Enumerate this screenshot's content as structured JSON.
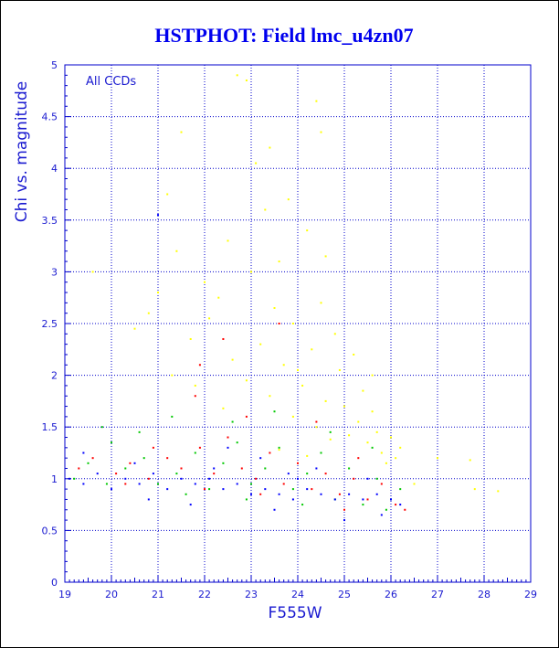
{
  "chart_data": {
    "type": "scatter",
    "title": "HSTPHOT: Field lmc_u4zn07",
    "xlabel": "F555W",
    "ylabel": "Chi vs. magnitude",
    "annotation": "All CCDs",
    "xlim": [
      19,
      29
    ],
    "ylim": [
      0,
      5
    ],
    "x_ticks": [
      "19",
      "20",
      "21",
      "22",
      "23",
      "24",
      "25",
      "26",
      "27",
      "28",
      "29"
    ],
    "y_ticks": [
      "0",
      "0.5",
      "1",
      "1.5",
      "2",
      "2.5",
      "3",
      "3.5",
      "4",
      "4.5",
      "5"
    ],
    "grid": true,
    "series": [
      {
        "color": "#ffff00",
        "points": [
          [
            22.7,
            4.9
          ],
          [
            22.9,
            4.85
          ],
          [
            24.4,
            4.65
          ],
          [
            24.5,
            4.35
          ],
          [
            21.5,
            4.35
          ],
          [
            23.4,
            4.2
          ],
          [
            23.1,
            4.05
          ],
          [
            21.2,
            3.75
          ],
          [
            23.8,
            3.7
          ],
          [
            23.3,
            3.6
          ],
          [
            24.2,
            3.4
          ],
          [
            21.4,
            3.2
          ],
          [
            22.5,
            3.3
          ],
          [
            24.6,
            3.15
          ],
          [
            23.0,
            3.0
          ],
          [
            19.6,
            3.0
          ],
          [
            21.0,
            2.8
          ],
          [
            22.3,
            2.75
          ],
          [
            24.5,
            2.7
          ],
          [
            23.5,
            2.65
          ],
          [
            22.1,
            2.55
          ],
          [
            23.9,
            2.5
          ],
          [
            20.5,
            2.45
          ],
          [
            24.8,
            2.4
          ],
          [
            21.7,
            2.35
          ],
          [
            23.2,
            2.3
          ],
          [
            24.3,
            2.25
          ],
          [
            25.2,
            2.2
          ],
          [
            22.6,
            2.15
          ],
          [
            23.7,
            2.1
          ],
          [
            24.9,
            2.05
          ],
          [
            21.3,
            2.0
          ],
          [
            22.9,
            1.95
          ],
          [
            24.1,
            1.9
          ],
          [
            25.4,
            1.85
          ],
          [
            23.4,
            1.8
          ],
          [
            24.6,
            1.75
          ],
          [
            25.0,
            1.7
          ],
          [
            22.4,
            1.68
          ],
          [
            25.6,
            1.65
          ],
          [
            23.9,
            1.6
          ],
          [
            25.3,
            1.55
          ],
          [
            24.4,
            1.5
          ],
          [
            25.7,
            1.45
          ],
          [
            25.1,
            1.42
          ],
          [
            26.0,
            1.4
          ],
          [
            24.7,
            1.38
          ],
          [
            25.5,
            1.35
          ],
          [
            26.2,
            1.3
          ],
          [
            23.6,
            1.28
          ],
          [
            25.8,
            1.25
          ],
          [
            24.2,
            1.22
          ],
          [
            26.1,
            1.2
          ],
          [
            25.9,
            1.15
          ],
          [
            27.7,
            1.18
          ],
          [
            27.8,
            0.9
          ],
          [
            28.3,
            0.88
          ],
          [
            27.0,
            1.2
          ],
          [
            26.5,
            0.95
          ],
          [
            20.8,
            2.6
          ],
          [
            22.0,
            2.9
          ],
          [
            23.6,
            3.1
          ],
          [
            24.0,
            2.05
          ],
          [
            21.8,
            1.9
          ],
          [
            25.6,
            2.0
          ]
        ]
      },
      {
        "color": "#ff0000",
        "points": [
          [
            19.3,
            1.1
          ],
          [
            19.6,
            1.2
          ],
          [
            20.1,
            1.05
          ],
          [
            20.4,
            1.15
          ],
          [
            20.8,
            1.0
          ],
          [
            21.2,
            1.2
          ],
          [
            21.5,
            1.1
          ],
          [
            21.9,
            1.3
          ],
          [
            22.2,
            1.05
          ],
          [
            22.5,
            1.4
          ],
          [
            22.8,
            1.1
          ],
          [
            23.1,
            1.0
          ],
          [
            23.4,
            1.25
          ],
          [
            23.7,
            0.95
          ],
          [
            24.0,
            1.15
          ],
          [
            24.3,
            0.9
          ],
          [
            24.6,
            1.05
          ],
          [
            24.9,
            0.85
          ],
          [
            25.2,
            1.0
          ],
          [
            25.5,
            0.8
          ],
          [
            25.8,
            0.95
          ],
          [
            26.1,
            0.75
          ],
          [
            26.3,
            0.7
          ],
          [
            21.8,
            1.8
          ],
          [
            22.4,
            2.35
          ],
          [
            23.6,
            2.5
          ],
          [
            21.9,
            2.1
          ],
          [
            22.9,
            1.6
          ],
          [
            24.4,
            1.55
          ],
          [
            25.3,
            1.2
          ],
          [
            20.9,
            1.3
          ],
          [
            23.2,
            0.85
          ],
          [
            25.0,
            0.7
          ],
          [
            22.0,
            0.9
          ],
          [
            20.3,
            0.95
          ]
        ]
      },
      {
        "color": "#00c800",
        "points": [
          [
            19.2,
            1.0
          ],
          [
            19.5,
            1.15
          ],
          [
            19.9,
            0.95
          ],
          [
            20.3,
            1.1
          ],
          [
            20.7,
            1.2
          ],
          [
            21.0,
            0.95
          ],
          [
            21.4,
            1.05
          ],
          [
            21.8,
            1.25
          ],
          [
            22.1,
            0.9
          ],
          [
            22.4,
            1.15
          ],
          [
            22.7,
            1.35
          ],
          [
            23.0,
            0.95
          ],
          [
            23.3,
            1.1
          ],
          [
            23.6,
            1.3
          ],
          [
            23.9,
            0.9
          ],
          [
            24.2,
            1.05
          ],
          [
            24.5,
            1.25
          ],
          [
            24.8,
            0.8
          ],
          [
            25.1,
            1.1
          ],
          [
            25.4,
            0.75
          ],
          [
            25.7,
            1.0
          ],
          [
            26.0,
            0.8
          ],
          [
            26.2,
            0.9
          ],
          [
            19.8,
            1.5
          ],
          [
            20.6,
            1.45
          ],
          [
            21.3,
            1.6
          ],
          [
            22.6,
            1.55
          ],
          [
            23.5,
            1.65
          ],
          [
            24.7,
            1.45
          ],
          [
            25.6,
            1.3
          ],
          [
            20.0,
            1.35
          ],
          [
            21.6,
            0.85
          ],
          [
            22.9,
            0.8
          ],
          [
            24.1,
            0.75
          ],
          [
            25.9,
            0.7
          ]
        ]
      },
      {
        "color": "#0000ff",
        "points": [
          [
            19.1,
            1.0
          ],
          [
            19.4,
            0.95
          ],
          [
            19.7,
            1.05
          ],
          [
            20.0,
            0.9
          ],
          [
            20.3,
            1.0
          ],
          [
            20.6,
            0.95
          ],
          [
            20.9,
            1.05
          ],
          [
            21.2,
            0.9
          ],
          [
            21.5,
            1.0
          ],
          [
            21.8,
            0.95
          ],
          [
            22.1,
            1.0
          ],
          [
            22.4,
            0.9
          ],
          [
            22.7,
            0.95
          ],
          [
            23.0,
            0.85
          ],
          [
            23.3,
            0.9
          ],
          [
            23.6,
            0.85
          ],
          [
            23.9,
            0.8
          ],
          [
            24.2,
            0.9
          ],
          [
            24.5,
            0.85
          ],
          [
            24.8,
            0.8
          ],
          [
            25.1,
            0.85
          ],
          [
            25.4,
            0.8
          ],
          [
            25.7,
            0.85
          ],
          [
            26.0,
            0.8
          ],
          [
            26.2,
            0.75
          ],
          [
            21.0,
            3.55
          ],
          [
            22.5,
            1.3
          ],
          [
            23.2,
            1.2
          ],
          [
            24.4,
            1.1
          ],
          [
            25.5,
            1.0
          ],
          [
            19.4,
            1.25
          ],
          [
            20.5,
            1.15
          ],
          [
            21.7,
            0.75
          ],
          [
            23.5,
            0.7
          ],
          [
            25.0,
            0.6
          ],
          [
            24.0,
            1.0
          ],
          [
            22.2,
            1.1
          ],
          [
            25.8,
            0.65
          ],
          [
            20.8,
            0.8
          ],
          [
            23.8,
            1.05
          ]
        ]
      }
    ]
  }
}
